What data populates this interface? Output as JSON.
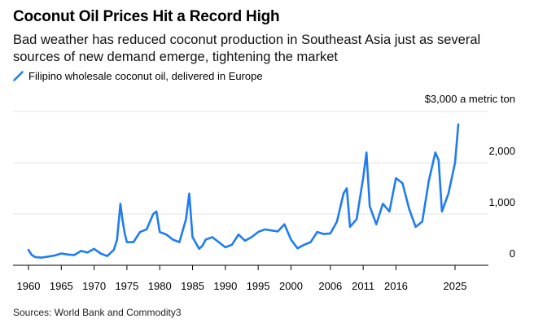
{
  "header": {
    "title": "Coconut Oil Prices Hit a Record High",
    "subtitle": "Bad weather has reduced coconut production in Southeast Asia just as several sources of new demand emerge, tightening the market"
  },
  "legend": {
    "label": "Filipino wholesale coconut oil, delivered in Europe"
  },
  "source": "Sources: World Bank and Commodity3",
  "colors": {
    "line": "#1f7cf2",
    "grid": "#e3e3e3",
    "axis": "#000000"
  },
  "chart_data": {
    "type": "line",
    "title": "Coconut Oil Prices Hit a Record High",
    "ylabel": "$3,000 a metric ton",
    "xlabel": "",
    "xlim": [
      1958.5,
      2028.5
    ],
    "ylim": [
      0,
      3000
    ],
    "grid": true,
    "y_ticks": [
      {
        "value": 0,
        "label": "0"
      },
      {
        "value": 1000,
        "label": "1,000"
      },
      {
        "value": 2000,
        "label": "2,000"
      }
    ],
    "unit_label_value": 3000,
    "x_ticks": [
      {
        "value": 1960,
        "label": "1960"
      },
      {
        "value": 1965,
        "label": "1965"
      },
      {
        "value": 1970,
        "label": "1970"
      },
      {
        "value": 1975,
        "label": "1975"
      },
      {
        "value": 1980,
        "label": "1980"
      },
      {
        "value": 1985,
        "label": "1985"
      },
      {
        "value": 1990,
        "label": "1990"
      },
      {
        "value": 1995,
        "label": "1995"
      },
      {
        "value": 2000,
        "label": "2000"
      },
      {
        "value": 2006,
        "label": "2006"
      },
      {
        "value": 2011,
        "label": "2011"
      },
      {
        "value": 2016,
        "label": "2016"
      },
      {
        "value": 2025,
        "label": "2025"
      }
    ],
    "series": [
      {
        "name": "Filipino wholesale coconut oil, delivered in Europe",
        "x": [
          1960,
          1960.5,
          1961,
          1962,
          1963,
          1964,
          1965,
          1966,
          1967,
          1968,
          1969,
          1970,
          1971,
          1972,
          1973,
          1973.5,
          1974,
          1974.3,
          1974.7,
          1975,
          1976,
          1977,
          1978,
          1979,
          1979.5,
          1980,
          1981,
          1982,
          1983,
          1984,
          1984.5,
          1985,
          1986,
          1986.5,
          1987,
          1988,
          1989,
          1990,
          1991,
          1992,
          1993,
          1994,
          1995,
          1996,
          1997,
          1998,
          1999,
          2000,
          2001,
          2002,
          2003,
          2004,
          2005,
          2006,
          2007,
          2008,
          2008.5,
          2009,
          2010,
          2011,
          2011.5,
          2012,
          2013,
          2014,
          2015,
          2016,
          2017,
          2018,
          2019,
          2020,
          2021,
          2022,
          2022.5,
          2023,
          2024,
          2025,
          2025.5
        ],
        "y": [
          300,
          200,
          160,
          150,
          170,
          190,
          230,
          210,
          200,
          280,
          250,
          320,
          230,
          180,
          300,
          500,
          1200,
          900,
          600,
          450,
          450,
          650,
          700,
          1000,
          1050,
          650,
          600,
          500,
          450,
          900,
          1400,
          550,
          320,
          380,
          500,
          550,
          450,
          350,
          400,
          600,
          480,
          550,
          650,
          700,
          680,
          660,
          800,
          500,
          330,
          400,
          450,
          650,
          610,
          620,
          850,
          1400,
          1500,
          750,
          900,
          1700,
          2200,
          1150,
          800,
          1200,
          1050,
          1700,
          1600,
          1100,
          750,
          850,
          1650,
          2200,
          2050,
          1050,
          1400,
          2000,
          2750
        ]
      }
    ]
  }
}
